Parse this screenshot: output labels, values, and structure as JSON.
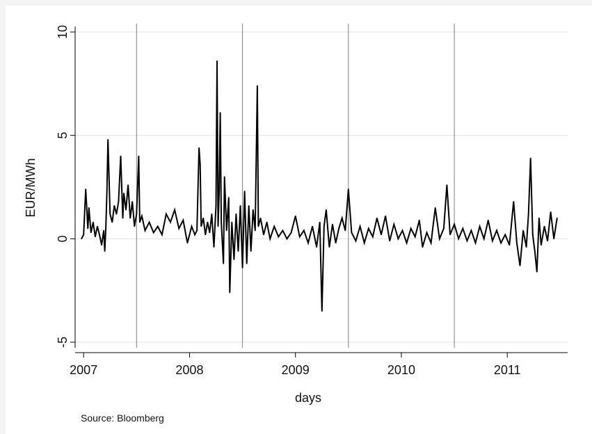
{
  "chart_data": {
    "type": "line",
    "xlabel": "days",
    "ylabel": "EUR/MWh",
    "source": "Source: Bloomberg",
    "xlim": [
      2006.92,
      2011.57
    ],
    "ylim": [
      -5,
      10
    ],
    "x_ticks": [
      2007,
      2008,
      2009,
      2010,
      2011
    ],
    "x_tick_labels": [
      "2007",
      "2008",
      "2009",
      "2010",
      "2011"
    ],
    "y_ticks": [
      -5,
      0,
      5,
      10
    ],
    "y_tick_labels": [
      "-5",
      "0",
      "5",
      "10"
    ],
    "grid": true,
    "vertical_reference_lines": [
      2007.5,
      2008.5,
      2009.5,
      2010.5
    ],
    "line_color": "#000000",
    "reference_line_color": "#7f7f7f",
    "gridline_color": "#e1e1e1",
    "series": [
      {
        "values": [
          [
            2006.98,
            0.0
          ],
          [
            2007.0,
            0.2
          ],
          [
            2007.02,
            2.4
          ],
          [
            2007.04,
            0.5
          ],
          [
            2007.05,
            1.5
          ],
          [
            2007.07,
            0.3
          ],
          [
            2007.09,
            0.8
          ],
          [
            2007.11,
            0.1
          ],
          [
            2007.13,
            0.6
          ],
          [
            2007.15,
            0.2
          ],
          [
            2007.17,
            -0.3
          ],
          [
            2007.19,
            0.4
          ],
          [
            2007.2,
            -0.6
          ],
          [
            2007.21,
            0.6
          ],
          [
            2007.22,
            2.3
          ],
          [
            2007.23,
            4.8
          ],
          [
            2007.25,
            1.2
          ],
          [
            2007.27,
            0.8
          ],
          [
            2007.29,
            1.6
          ],
          [
            2007.31,
            1.2
          ],
          [
            2007.33,
            1.8
          ],
          [
            2007.35,
            4.0
          ],
          [
            2007.37,
            1.0
          ],
          [
            2007.38,
            2.2
          ],
          [
            2007.4,
            1.4
          ],
          [
            2007.42,
            2.6
          ],
          [
            2007.44,
            1.0
          ],
          [
            2007.46,
            1.8
          ],
          [
            2007.48,
            0.6
          ],
          [
            2007.5,
            1.2
          ],
          [
            2007.52,
            4.0
          ],
          [
            2007.53,
            0.8
          ],
          [
            2007.55,
            1.1
          ],
          [
            2007.58,
            0.4
          ],
          [
            2007.62,
            0.8
          ],
          [
            2007.66,
            0.3
          ],
          [
            2007.7,
            0.6
          ],
          [
            2007.74,
            0.2
          ],
          [
            2007.78,
            1.2
          ],
          [
            2007.82,
            0.8
          ],
          [
            2007.86,
            1.4
          ],
          [
            2007.9,
            0.5
          ],
          [
            2007.94,
            0.9
          ],
          [
            2007.98,
            -0.2
          ],
          [
            2008.02,
            0.6
          ],
          [
            2008.05,
            0.2
          ],
          [
            2008.07,
            0.4
          ],
          [
            2008.09,
            4.4
          ],
          [
            2008.1,
            3.6
          ],
          [
            2008.11,
            0.6
          ],
          [
            2008.13,
            1.0
          ],
          [
            2008.15,
            0.2
          ],
          [
            2008.17,
            0.8
          ],
          [
            2008.19,
            0.3
          ],
          [
            2008.21,
            1.2
          ],
          [
            2008.23,
            -0.4
          ],
          [
            2008.25,
            1.6
          ],
          [
            2008.26,
            8.6
          ],
          [
            2008.27,
            0.6
          ],
          [
            2008.28,
            2.3
          ],
          [
            2008.29,
            6.1
          ],
          [
            2008.3,
            0.8
          ],
          [
            2008.32,
            -1.2
          ],
          [
            2008.33,
            3.0
          ],
          [
            2008.35,
            0.4
          ],
          [
            2008.37,
            2.0
          ],
          [
            2008.38,
            -2.6
          ],
          [
            2008.4,
            0.8
          ],
          [
            2008.42,
            -1.0
          ],
          [
            2008.44,
            1.2
          ],
          [
            2008.46,
            -0.6
          ],
          [
            2008.48,
            1.6
          ],
          [
            2008.5,
            -1.4
          ],
          [
            2008.52,
            2.3
          ],
          [
            2008.54,
            -1.2
          ],
          [
            2008.56,
            1.6
          ],
          [
            2008.58,
            -0.6
          ],
          [
            2008.6,
            1.4
          ],
          [
            2008.62,
            0.4
          ],
          [
            2008.64,
            7.4
          ],
          [
            2008.65,
            0.6
          ],
          [
            2008.67,
            1.0
          ],
          [
            2008.7,
            0.2
          ],
          [
            2008.73,
            0.8
          ],
          [
            2008.76,
            0.0
          ],
          [
            2008.8,
            0.6
          ],
          [
            2008.84,
            0.1
          ],
          [
            2008.88,
            0.4
          ],
          [
            2008.92,
            0.0
          ],
          [
            2008.96,
            0.3
          ],
          [
            2009.0,
            1.1
          ],
          [
            2009.04,
            0.1
          ],
          [
            2009.08,
            0.4
          ],
          [
            2009.12,
            -0.2
          ],
          [
            2009.16,
            0.6
          ],
          [
            2009.2,
            -0.4
          ],
          [
            2009.23,
            0.8
          ],
          [
            2009.25,
            -3.5
          ],
          [
            2009.27,
            0.6
          ],
          [
            2009.29,
            1.4
          ],
          [
            2009.32,
            -0.4
          ],
          [
            2009.35,
            0.7
          ],
          [
            2009.38,
            -0.2
          ],
          [
            2009.41,
            0.5
          ],
          [
            2009.44,
            1.0
          ],
          [
            2009.47,
            0.4
          ],
          [
            2009.5,
            2.4
          ],
          [
            2009.53,
            0.3
          ],
          [
            2009.57,
            -0.1
          ],
          [
            2009.61,
            0.6
          ],
          [
            2009.65,
            -0.2
          ],
          [
            2009.69,
            0.5
          ],
          [
            2009.73,
            0.1
          ],
          [
            2009.77,
            1.0
          ],
          [
            2009.81,
            0.2
          ],
          [
            2009.85,
            1.1
          ],
          [
            2009.89,
            -0.1
          ],
          [
            2009.93,
            0.7
          ],
          [
            2009.97,
            0.0
          ],
          [
            2010.01,
            0.4
          ],
          [
            2010.05,
            -0.2
          ],
          [
            2010.09,
            0.5
          ],
          [
            2010.13,
            0.1
          ],
          [
            2010.17,
            0.9
          ],
          [
            2010.2,
            -0.4
          ],
          [
            2010.24,
            0.3
          ],
          [
            2010.28,
            -0.2
          ],
          [
            2010.32,
            1.5
          ],
          [
            2010.36,
            0.0
          ],
          [
            2010.4,
            0.5
          ],
          [
            2010.43,
            2.6
          ],
          [
            2010.46,
            0.2
          ],
          [
            2010.5,
            0.7
          ],
          [
            2010.54,
            0.0
          ],
          [
            2010.58,
            0.5
          ],
          [
            2010.62,
            -0.1
          ],
          [
            2010.66,
            0.4
          ],
          [
            2010.7,
            -0.2
          ],
          [
            2010.74,
            0.6
          ],
          [
            2010.78,
            0.0
          ],
          [
            2010.82,
            0.9
          ],
          [
            2010.86,
            -0.1
          ],
          [
            2010.9,
            0.4
          ],
          [
            2010.94,
            -0.2
          ],
          [
            2010.98,
            0.2
          ],
          [
            2011.02,
            -0.3
          ],
          [
            2011.06,
            1.8
          ],
          [
            2011.09,
            -0.2
          ],
          [
            2011.12,
            -1.3
          ],
          [
            2011.15,
            0.4
          ],
          [
            2011.18,
            -0.4
          ],
          [
            2011.2,
            1.2
          ],
          [
            2011.22,
            3.9
          ],
          [
            2011.24,
            0.2
          ],
          [
            2011.26,
            -0.6
          ],
          [
            2011.28,
            -1.6
          ],
          [
            2011.3,
            1.0
          ],
          [
            2011.32,
            -0.3
          ],
          [
            2011.35,
            0.6
          ],
          [
            2011.38,
            -0.1
          ],
          [
            2011.41,
            1.3
          ],
          [
            2011.44,
            0.0
          ],
          [
            2011.47,
            1.0
          ]
        ]
      }
    ]
  }
}
